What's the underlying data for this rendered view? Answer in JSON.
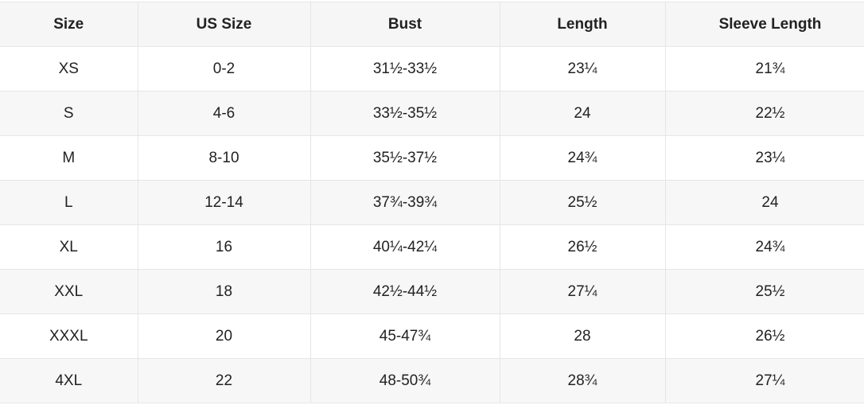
{
  "headers": [
    "Size",
    "US Size",
    "Bust",
    "Length",
    "Sleeve Length"
  ],
  "rows": [
    [
      "XS",
      "0-2",
      "31½-33½",
      "23¼",
      "21¾"
    ],
    [
      "S",
      "4-6",
      "33½-35½",
      "24",
      "22½"
    ],
    [
      "M",
      "8-10",
      "35½-37½",
      "24¾",
      "23¼"
    ],
    [
      "L",
      "12-14",
      "37¾-39¾",
      "25½",
      "24"
    ],
    [
      "XL",
      "16",
      "40¼-42¼",
      "26½",
      "24¾"
    ],
    [
      "XXL",
      "18",
      "42½-44½",
      "27¼",
      "25½"
    ],
    [
      "XXXL",
      "20",
      "45-47¾",
      "28",
      "26½"
    ],
    [
      "4XL",
      "22",
      "48-50¾",
      "28¾",
      "27¼"
    ]
  ],
  "colors": {
    "header_bg": "#f6f6f6",
    "stripe_bg": "#f7f7f7",
    "border": "#e6e6e6",
    "text": "#222222"
  }
}
